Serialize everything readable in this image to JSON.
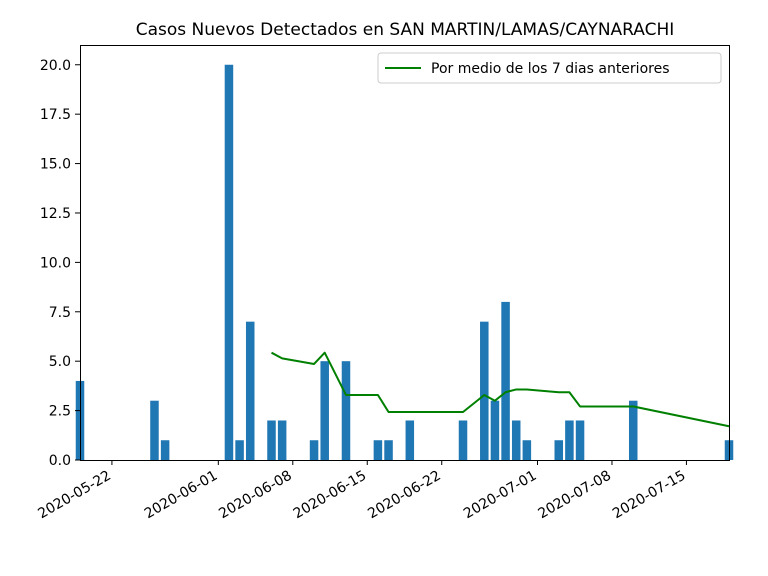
{
  "chart_data": {
    "type": "bar",
    "title": "Casos Nuevos Detectados en SAN MARTIN/LAMAS/CAYNARACHI",
    "xlabel": "",
    "ylabel": "",
    "xlim": [
      "2020-05-19",
      "2020-07-19"
    ],
    "ylim": [
      0,
      21
    ],
    "x_ticks": [
      "2020-05-22",
      "2020-06-01",
      "2020-06-08",
      "2020-06-15",
      "2020-06-22",
      "2020-07-01",
      "2020-07-08",
      "2020-07-15"
    ],
    "y_ticks": [
      "0.0",
      "2.5",
      "5.0",
      "7.5",
      "10.0",
      "12.5",
      "15.0",
      "17.5",
      "20.0"
    ],
    "grid": false,
    "legend_position": "top-right",
    "bar_color": "#1f77b4",
    "bars": [
      {
        "date": "2020-05-19",
        "value": 4
      },
      {
        "date": "2020-05-26",
        "value": 3
      },
      {
        "date": "2020-05-27",
        "value": 1
      },
      {
        "date": "2020-06-02",
        "value": 20
      },
      {
        "date": "2020-06-03",
        "value": 1
      },
      {
        "date": "2020-06-04",
        "value": 7
      },
      {
        "date": "2020-06-06",
        "value": 2
      },
      {
        "date": "2020-06-07",
        "value": 2
      },
      {
        "date": "2020-06-10",
        "value": 1
      },
      {
        "date": "2020-06-11",
        "value": 5
      },
      {
        "date": "2020-06-13",
        "value": 5
      },
      {
        "date": "2020-06-16",
        "value": 1
      },
      {
        "date": "2020-06-17",
        "value": 1
      },
      {
        "date": "2020-06-19",
        "value": 2
      },
      {
        "date": "2020-06-24",
        "value": 2
      },
      {
        "date": "2020-06-26",
        "value": 7
      },
      {
        "date": "2020-06-27",
        "value": 3
      },
      {
        "date": "2020-06-28",
        "value": 8
      },
      {
        "date": "2020-06-29",
        "value": 2
      },
      {
        "date": "2020-06-30",
        "value": 1
      },
      {
        "date": "2020-07-03",
        "value": 1
      },
      {
        "date": "2020-07-04",
        "value": 2
      },
      {
        "date": "2020-07-05",
        "value": 2
      },
      {
        "date": "2020-07-10",
        "value": 3
      },
      {
        "date": "2020-07-19",
        "value": 1
      }
    ],
    "series": [
      {
        "name": "Por medio de los 7 dias anteriores",
        "color": "#008000",
        "points": [
          {
            "date": "2020-06-06",
            "value": 5.43
          },
          {
            "date": "2020-06-07",
            "value": 5.14
          },
          {
            "date": "2020-06-10",
            "value": 4.86
          },
          {
            "date": "2020-06-11",
            "value": 5.43
          },
          {
            "date": "2020-06-13",
            "value": 3.29
          },
          {
            "date": "2020-06-16",
            "value": 3.29
          },
          {
            "date": "2020-06-17",
            "value": 2.43
          },
          {
            "date": "2020-06-24",
            "value": 2.43
          },
          {
            "date": "2020-06-26",
            "value": 3.29
          },
          {
            "date": "2020-06-27",
            "value": 3.0
          },
          {
            "date": "2020-06-28",
            "value": 3.43
          },
          {
            "date": "2020-06-29",
            "value": 3.57
          },
          {
            "date": "2020-06-30",
            "value": 3.57
          },
          {
            "date": "2020-07-03",
            "value": 3.43
          },
          {
            "date": "2020-07-04",
            "value": 3.43
          },
          {
            "date": "2020-07-05",
            "value": 2.71
          },
          {
            "date": "2020-07-10",
            "value": 2.71
          },
          {
            "date": "2020-07-19",
            "value": 1.71
          }
        ]
      }
    ]
  }
}
